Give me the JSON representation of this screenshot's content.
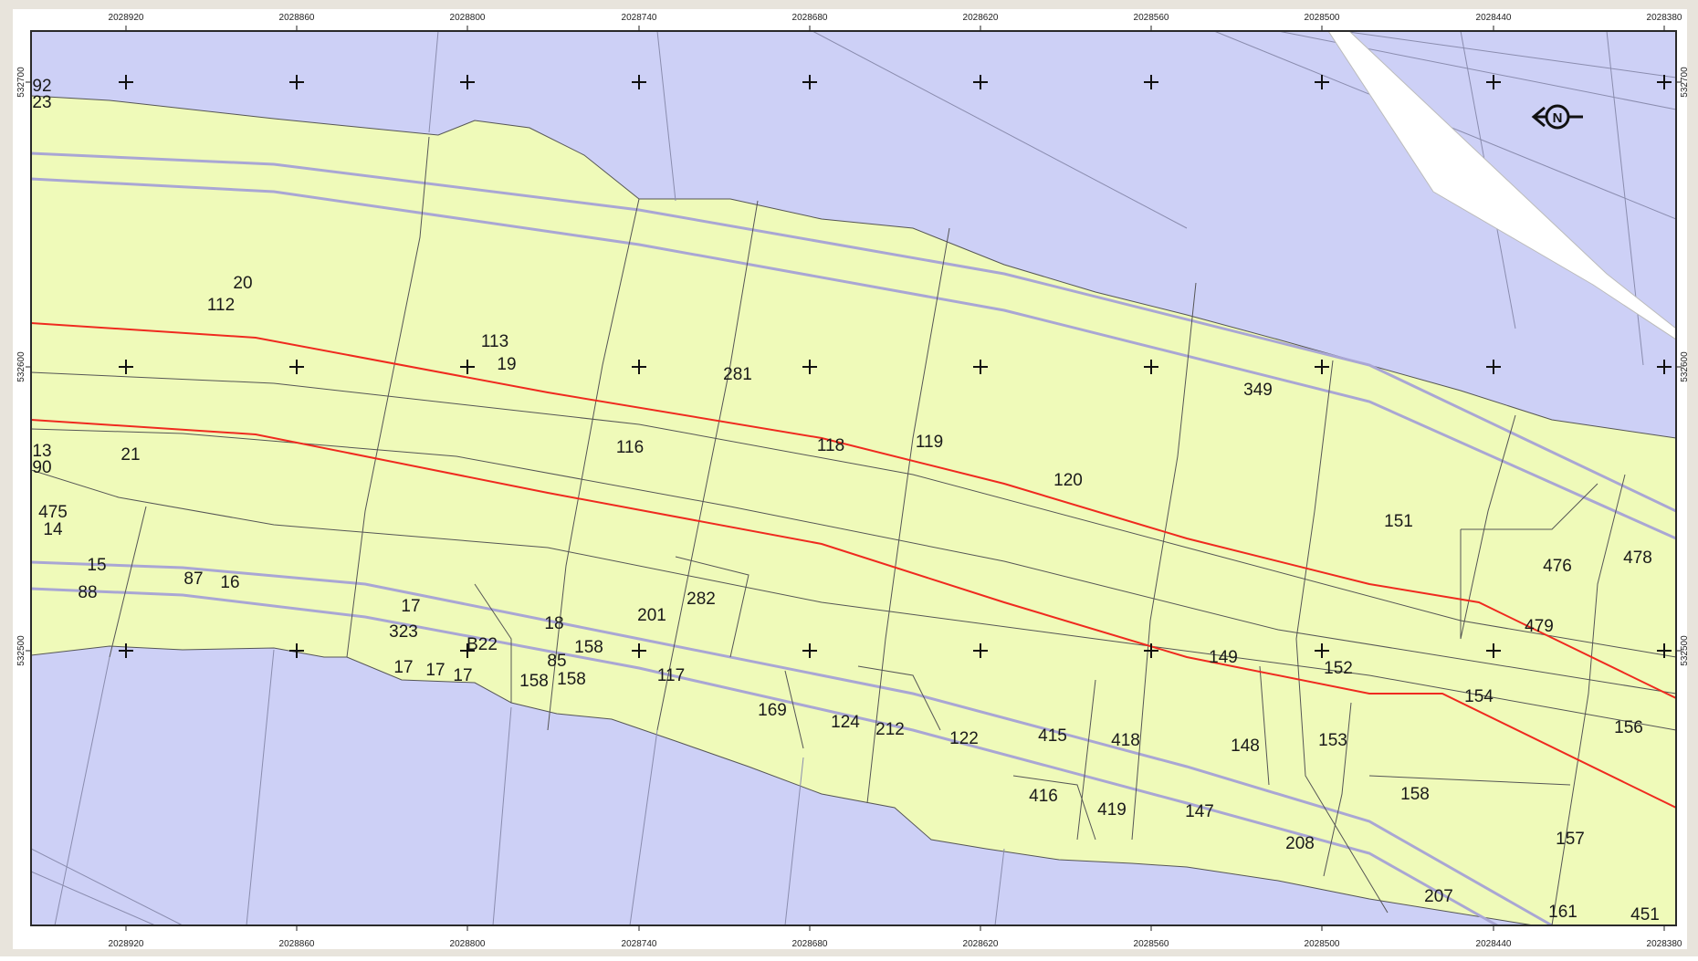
{
  "colors": {
    "water": "#cdd0f6",
    "land": "#effab9",
    "parcel_line": "#4a4a4a",
    "road_line": "#a9a6d4",
    "red_line": "#ef2a1f",
    "frame": "#2a2a2a",
    "page_border": "#e8e4dc"
  },
  "map": {
    "top_ticks": [
      "2028920",
      "2028860",
      "2028800",
      "2028740",
      "2028680",
      "2028620",
      "2028560",
      "2028500",
      "2028440",
      "2028380"
    ],
    "bottom_ticks": [
      "2028920",
      "2028860",
      "2028800",
      "2028740",
      "2028680",
      "2028620",
      "2028560",
      "2028500",
      "2028440",
      "2028380"
    ],
    "left_ticks": [
      "532700",
      "532600",
      "532500"
    ],
    "right_ticks": [
      "532700",
      "532600",
      "532500"
    ],
    "north_arrow_label": "N",
    "parcel_labels": [
      "92",
      "23",
      "20",
      "112",
      "113",
      "19",
      "281",
      "349",
      "13",
      "90",
      "21",
      "116",
      "118",
      "119",
      "120",
      "475",
      "14",
      "151",
      "476",
      "478",
      "15",
      "87",
      "16",
      "88",
      "282",
      "17",
      "201",
      "18",
      "323",
      "B22",
      "158",
      "479",
      "17",
      "17",
      "17",
      "85",
      "158",
      "158",
      "117",
      "149",
      "152",
      "154",
      "169",
      "124",
      "212",
      "122",
      "415",
      "418",
      "148",
      "153",
      "156",
      "416",
      "419",
      "147",
      "158",
      "208",
      "157",
      "207",
      "161",
      "451"
    ]
  }
}
